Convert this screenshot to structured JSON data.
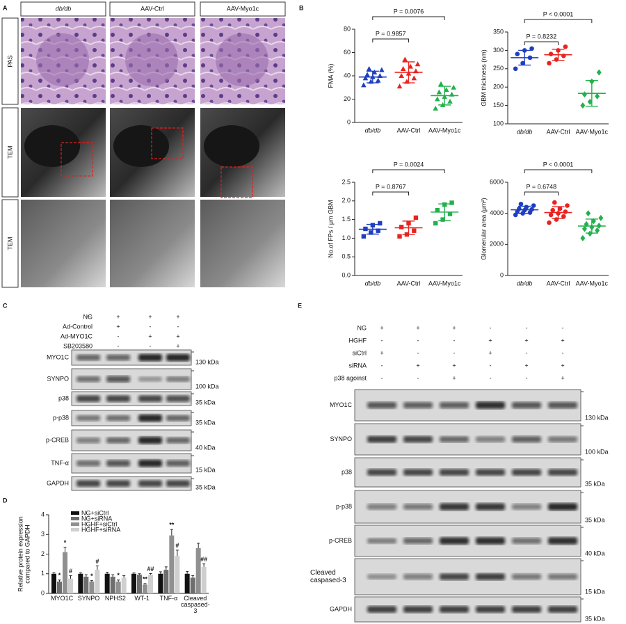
{
  "panel_a": {
    "label": "A",
    "columns": [
      "db/db",
      "AAV-Ctrl",
      "AAV-Myo1c"
    ],
    "rows": [
      "PAS",
      "TEM",
      "TEM"
    ]
  },
  "panel_b": {
    "label": "B"
  },
  "panel_c": {
    "label": "C",
    "treatments": [
      {
        "name": "NG",
        "signs": [
          "+",
          "+",
          "+",
          "+"
        ]
      },
      {
        "name": "Ad-Control",
        "signs": [
          "-",
          "+",
          "-",
          "-"
        ]
      },
      {
        "name": "Ad-MYO1C",
        "signs": [
          "-",
          "-",
          "+",
          "+"
        ]
      },
      {
        "name": "SB203580",
        "signs": [
          "-",
          "-",
          "-",
          "+"
        ]
      }
    ],
    "blots": [
      {
        "name": "MYO1C",
        "kda": "130 kDa"
      },
      {
        "name": "SYNPO",
        "kda": "100 kDa"
      },
      {
        "name": "p38",
        "kda": "35 kDa"
      },
      {
        "name": "p-p38",
        "kda": "35 kDa"
      },
      {
        "name": "p-CREB",
        "kda": "40 kDa"
      },
      {
        "name": "TNF-α",
        "kda": "15 kDa"
      },
      {
        "name": "GAPDH",
        "kda": "35 kDa"
      }
    ]
  },
  "panel_d": {
    "label": "D"
  },
  "panel_e": {
    "label": "E",
    "treatments": [
      {
        "name": "NG",
        "signs": [
          "+",
          "+",
          "+",
          "-",
          "-",
          "-"
        ]
      },
      {
        "name": "HGHF",
        "signs": [
          "-",
          "-",
          "-",
          "+",
          "+",
          "+"
        ]
      },
      {
        "name": "siCtrl",
        "signs": [
          "+",
          "-",
          "-",
          "+",
          "-",
          "-"
        ]
      },
      {
        "name": "siRNA",
        "signs": [
          "-",
          "+",
          "+",
          "-",
          "+",
          "+"
        ]
      },
      {
        "name": "p38 agoinst",
        "signs": [
          "-",
          "-",
          "+",
          "-",
          "-",
          "+"
        ]
      }
    ],
    "blots": [
      {
        "name": "MYO1C",
        "kda": "130 kDa"
      },
      {
        "name": "SYNPO",
        "kda": "100 kDa"
      },
      {
        "name": "p38",
        "kda": "35 kDa"
      },
      {
        "name": "p-p38",
        "kda": "35 kDa"
      },
      {
        "name": "p-CREB",
        "kda": "40 kDa"
      },
      {
        "name": "Cleaved caspased-3",
        "kda": "15 kDa"
      },
      {
        "name": "GAPDH",
        "kda": "35 kDa"
      }
    ]
  },
  "chart_data": [
    {
      "type": "dot",
      "ylabel": "FMA (%)",
      "categories": [
        "db/db",
        "AAV-Ctrl",
        "AAV-Myo1c"
      ],
      "colors": [
        "#1f3fbf",
        "#e8231f",
        "#22b14c"
      ],
      "markers": [
        "triangle",
        "triangle",
        "triangle"
      ],
      "points": [
        [
          32,
          35,
          36,
          38,
          39,
          40,
          41,
          43,
          45,
          46
        ],
        [
          31,
          35,
          38,
          40,
          42,
          44,
          46,
          48,
          50,
          54
        ],
        [
          12,
          15,
          18,
          20,
          22,
          24,
          26,
          28,
          30,
          33
        ]
      ],
      "means": [
        39,
        43,
        23
      ],
      "sds": [
        5,
        9,
        8
      ],
      "comparisons": [
        "P = 0.9857",
        "P = 0.0076"
      ],
      "ylim": [
        0,
        80
      ],
      "yticks": [
        0,
        20,
        40,
        60,
        80
      ]
    },
    {
      "type": "dot",
      "ylabel": "GBM thickness (nm)",
      "categories": [
        "db/db",
        "AAV-Ctrl",
        "AAV-Myo1c"
      ],
      "colors": [
        "#1f3fbf",
        "#e8231f",
        "#22b14c"
      ],
      "markers": [
        "circle",
        "circle",
        "diamond"
      ],
      "points": [
        [
          250,
          265,
          280,
          290,
          300,
          305
        ],
        [
          265,
          275,
          285,
          290,
          300,
          310
        ],
        [
          150,
          160,
          175,
          180,
          215,
          240
        ]
      ],
      "means": [
        280,
        288,
        183
      ],
      "sds": [
        20,
        15,
        35
      ],
      "comparisons": [
        "P = 0.8232",
        "P < 0.0001"
      ],
      "ylim": [
        100,
        350
      ],
      "yticks": [
        100,
        150,
        200,
        250,
        300,
        350
      ]
    },
    {
      "type": "dot",
      "ylabel": "No.of FPs / μm GBM",
      "categories": [
        "db/db",
        "AAV-Ctrl",
        "AAV-Myo1c"
      ],
      "colors": [
        "#1f3fbf",
        "#e8231f",
        "#22b14c"
      ],
      "markers": [
        "square",
        "square",
        "square"
      ],
      "points": [
        [
          1.05,
          1.15,
          1.2,
          1.25,
          1.35,
          1.4
        ],
        [
          1.05,
          1.1,
          1.2,
          1.3,
          1.4,
          1.55
        ],
        [
          1.4,
          1.5,
          1.65,
          1.75,
          1.9,
          1.95
        ]
      ],
      "means": [
        1.24,
        1.28,
        1.7
      ],
      "sds": [
        0.13,
        0.18,
        0.22
      ],
      "comparisons": [
        "P = 0.8767",
        "P = 0.0024"
      ],
      "ylim": [
        0,
        2.5
      ],
      "yticks": [
        {
          "value": 0,
          "label": "0.0"
        },
        0.5,
        {
          "value": 1,
          "label": "1.0"
        },
        1.5,
        {
          "value": 2,
          "label": "2.0"
        },
        2.5
      ]
    },
    {
      "type": "dot",
      "ylabel": "Glomerular area (μm²)",
      "categories": [
        "db/db",
        "AAV-Ctrl",
        "AAV-Myo1c"
      ],
      "colors": [
        "#1f3fbf",
        "#e8231f",
        "#22b14c"
      ],
      "markers": [
        "circle",
        "circle",
        "diamond"
      ],
      "points": [
        [
          3900,
          4000,
          4050,
          4100,
          4200,
          4250,
          4300,
          4400,
          4500,
          4600
        ],
        [
          3400,
          3600,
          3800,
          3900,
          4000,
          4100,
          4200,
          4300,
          4500,
          4700
        ],
        [
          2400,
          2700,
          2900,
          3000,
          3100,
          3200,
          3300,
          3500,
          3700,
          4000
        ]
      ],
      "means": [
        4230,
        4050,
        3180
      ],
      "sds": [
        230,
        380,
        450
      ],
      "comparisons": [
        "P = 0.6748",
        "P < 0.0001"
      ],
      "ylim": [
        0,
        6000
      ],
      "yticks": [
        0,
        2000,
        4000,
        6000
      ]
    },
    {
      "type": "bar",
      "ylabel": [
        "Relative protein expression",
        "compared to GAPDH"
      ],
      "categories": [
        "MYO1C",
        "SYNPO",
        "NPHS2",
        "WT-1",
        "TNF-α",
        "Cleaved caspased-3"
      ],
      "series": [
        {
          "name": "NG+siCtrl",
          "color": "#111111",
          "values": [
            1.0,
            1.0,
            1.0,
            1.0,
            1.0,
            1.0
          ],
          "errors": [
            0.05,
            0.05,
            0.08,
            0.04,
            0.1,
            0.12
          ]
        },
        {
          "name": "NG+siRNA",
          "color": "#6e6e6e",
          "values": [
            0.6,
            0.85,
            0.85,
            0.95,
            1.2,
            0.8
          ],
          "errors": [
            0.08,
            0.1,
            0.1,
            0.05,
            0.15,
            0.1
          ]
        },
        {
          "name": "HGHF+siCtrl",
          "color": "#909090",
          "values": [
            2.1,
            0.6,
            0.6,
            0.45,
            2.95,
            2.3
          ],
          "errors": [
            0.25,
            0.05,
            0.08,
            0.05,
            0.3,
            0.25
          ]
        },
        {
          "name": "HGHF+siRNA",
          "color": "#cfcfcf",
          "values": [
            0.75,
            1.2,
            0.8,
            0.95,
            1.9,
            1.35
          ],
          "errors": [
            0.15,
            0.2,
            0.1,
            0.06,
            0.3,
            0.15
          ]
        }
      ],
      "annotations": [
        "*",
        "*",
        "#",
        "*",
        "#",
        "*",
        "**",
        "##",
        "**",
        "#",
        "##"
      ],
      "ylim": [
        0,
        4
      ],
      "yticks": [
        0,
        1,
        2,
        3,
        4
      ]
    }
  ]
}
